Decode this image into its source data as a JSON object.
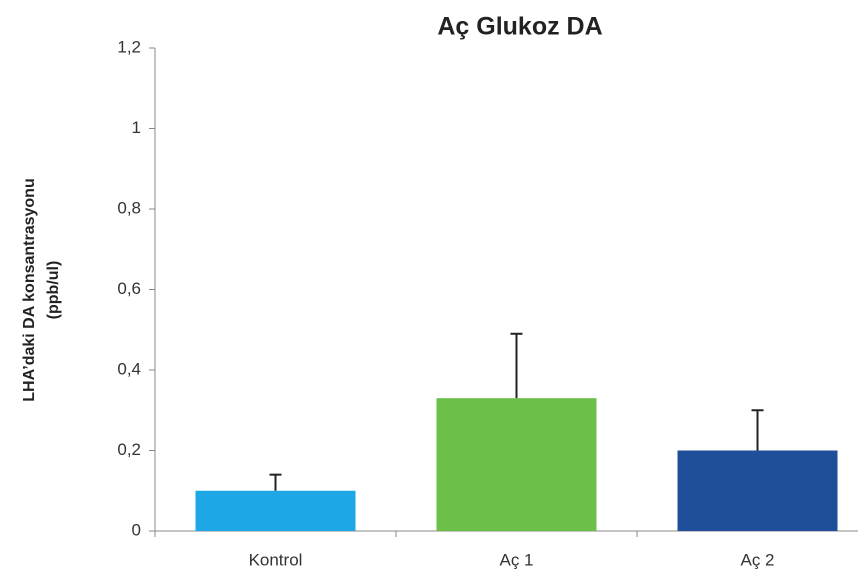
{
  "chart_data": {
    "type": "bar",
    "title": "Aç Glukoz DA",
    "ylabel": [
      "LHA’daki DA konsantrasyonu",
      "(ppb/ul)"
    ],
    "categories": [
      "Kontrol",
      "Aç 1",
      "Aç 2"
    ],
    "values": [
      0.1,
      0.33,
      0.2
    ],
    "errors": [
      0.04,
      0.16,
      0.1
    ],
    "colors": [
      "#1ea7e6",
      "#6cc04a",
      "#1f4e9a"
    ],
    "ylim": [
      0,
      1.2
    ],
    "yticks": [
      0,
      {
        "value": 0.2,
        "label": "0,2"
      },
      {
        "value": 0.4,
        "label": "0,4"
      },
      {
        "value": 0.6,
        "label": "0,6"
      },
      {
        "value": 0.8,
        "label": "0,8"
      },
      1,
      {
        "value": 1.2,
        "label": "1,2"
      }
    ],
    "grid": false
  }
}
